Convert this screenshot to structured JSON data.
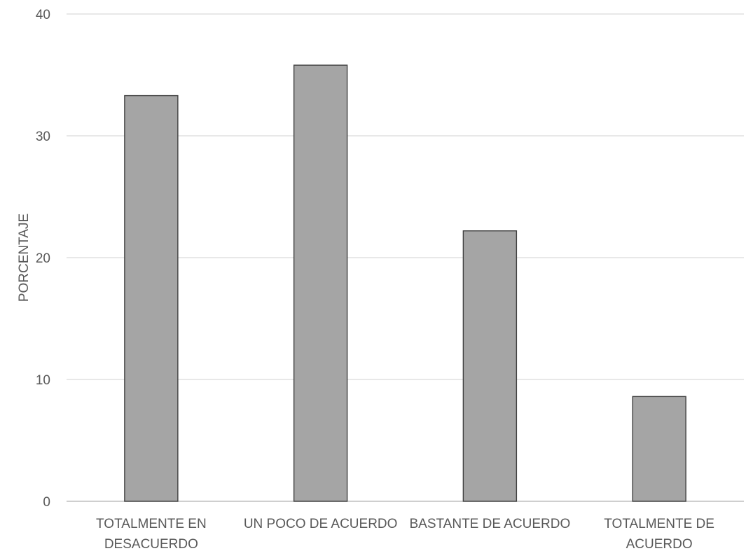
{
  "chart_data": {
    "type": "bar",
    "categories": [
      [
        "TOTALMENTE EN",
        "DESACUERDO"
      ],
      [
        "UN POCO DE ACUERDO"
      ],
      [
        "BASTANTE DE ACUERDO"
      ],
      [
        "TOTALMENTE DE",
        "ACUERDO"
      ]
    ],
    "values": [
      33.3,
      35.8,
      22.2,
      8.6
    ],
    "title": "",
    "xlabel": "",
    "ylabel": "PORCENTAJE",
    "ylim": [
      0,
      40
    ],
    "yticks": [
      "0",
      "10",
      "20",
      "30",
      "40"
    ],
    "grid": true,
    "legend": "none",
    "colors": {
      "bar_fill": "#a5a5a5",
      "bar_stroke": "#404040",
      "grid": "#d9d9d9",
      "text": "#595959"
    }
  }
}
